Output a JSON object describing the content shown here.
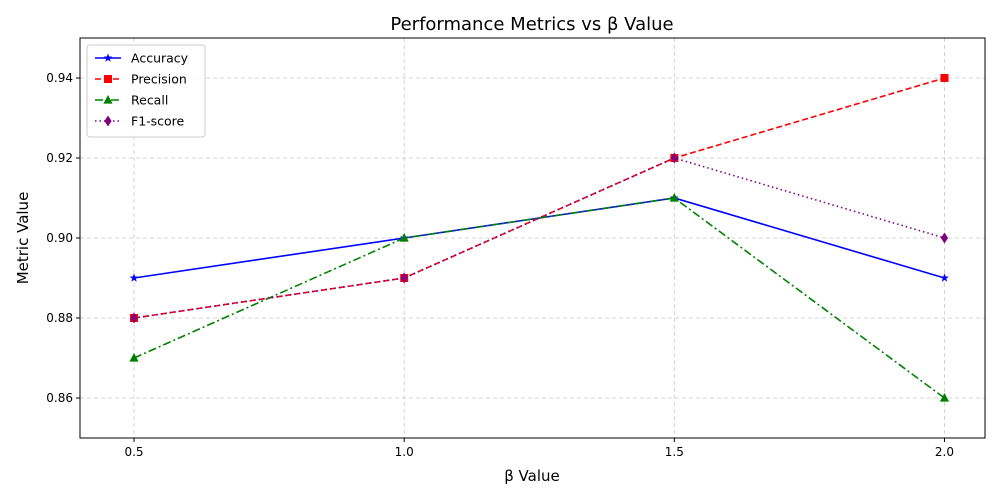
{
  "chart_data": {
    "type": "line",
    "title": "Performance Metrics vs β Value",
    "xlabel": "β Value",
    "ylabel": "Metric Value",
    "x": [
      0.5,
      1.0,
      1.5,
      2.0
    ],
    "x_tick_labels": [
      "0.5",
      "1.0",
      "1.5",
      "2.0"
    ],
    "xlim": [
      0.4,
      2.075
    ],
    "ylim": [
      0.85,
      0.95
    ],
    "y_ticks": [
      0.86,
      0.88,
      0.9,
      0.92,
      0.94
    ],
    "y_tick_labels": [
      "0.86",
      "0.88",
      "0.90",
      "0.92",
      "0.94"
    ],
    "grid": true,
    "legend_position": "top-left",
    "series": [
      {
        "name": "Accuracy",
        "values": [
          0.89,
          0.9,
          0.91,
          0.89
        ],
        "color": "#0000ff",
        "dash": "solid",
        "marker": "star"
      },
      {
        "name": "Precision",
        "values": [
          0.88,
          0.89,
          0.92,
          0.94
        ],
        "color": "#ff0000",
        "dash": "dashed",
        "marker": "square"
      },
      {
        "name": "Recall",
        "values": [
          0.87,
          0.9,
          0.91,
          0.86
        ],
        "color": "#008000",
        "dash": "dashdot",
        "marker": "triangle"
      },
      {
        "name": "F1-score",
        "values": [
          0.88,
          0.89,
          0.92,
          0.9
        ],
        "color": "#800080",
        "dash": "dotted",
        "marker": "diamond"
      }
    ]
  }
}
